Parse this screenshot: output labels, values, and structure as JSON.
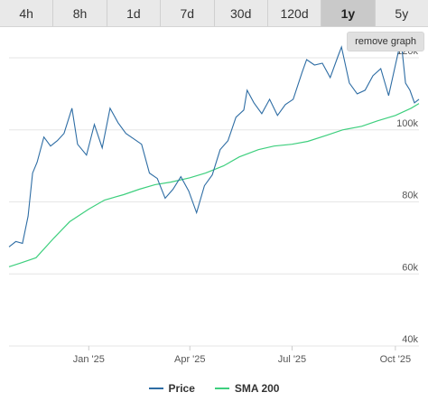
{
  "tabs": [
    {
      "label": "4h",
      "active": false
    },
    {
      "label": "8h",
      "active": false
    },
    {
      "label": "1d",
      "active": false
    },
    {
      "label": "7d",
      "active": false
    },
    {
      "label": "30d",
      "active": false
    },
    {
      "label": "120d",
      "active": false
    },
    {
      "label": "1y",
      "active": true
    },
    {
      "label": "5y",
      "active": false
    }
  ],
  "remove_graph_label": "remove graph",
  "colors": {
    "price": "#2e6da4",
    "sma": "#3ecf7e",
    "grid": "#e6e6e6",
    "axis_text": "#555555"
  },
  "chart_data": {
    "type": "line",
    "x_unit": "date",
    "ylim": [
      40000,
      120000
    ],
    "y_ticks": [
      {
        "value": 40000,
        "label": "40k"
      },
      {
        "value": 60000,
        "label": "60k"
      },
      {
        "value": 80000,
        "label": "80k"
      },
      {
        "value": 100000,
        "label": "100k"
      },
      {
        "value": 120000,
        "label": "120k"
      }
    ],
    "x_ticks": [
      {
        "date": "2025-01-01",
        "label": "Jan '25"
      },
      {
        "date": "2025-04-01",
        "label": "Apr '25"
      },
      {
        "date": "2025-07-01",
        "label": "Jul '25"
      },
      {
        "date": "2025-10-01",
        "label": "Oct '25"
      }
    ],
    "x_range": [
      "2024-10-22",
      "2025-10-22"
    ],
    "series": [
      {
        "name": "Price",
        "color": "#2e6da4",
        "points": [
          [
            "2024-10-22",
            67500
          ],
          [
            "2024-10-28",
            69000
          ],
          [
            "2024-11-03",
            68500
          ],
          [
            "2024-11-08",
            76000
          ],
          [
            "2024-11-12",
            88000
          ],
          [
            "2024-11-16",
            91000
          ],
          [
            "2024-11-22",
            98000
          ],
          [
            "2024-11-28",
            95500
          ],
          [
            "2024-12-04",
            97000
          ],
          [
            "2024-12-10",
            99000
          ],
          [
            "2024-12-17",
            106000
          ],
          [
            "2024-12-22",
            96000
          ],
          [
            "2024-12-30",
            93000
          ],
          [
            "2025-01-06",
            101500
          ],
          [
            "2025-01-13",
            95000
          ],
          [
            "2025-01-20",
            106000
          ],
          [
            "2025-01-27",
            102000
          ],
          [
            "2025-02-03",
            99000
          ],
          [
            "2025-02-10",
            97500
          ],
          [
            "2025-02-17",
            96000
          ],
          [
            "2025-02-24",
            88000
          ],
          [
            "2025-03-03",
            86500
          ],
          [
            "2025-03-10",
            81000
          ],
          [
            "2025-03-17",
            83500
          ],
          [
            "2025-03-24",
            87000
          ],
          [
            "2025-03-31",
            83000
          ],
          [
            "2025-04-07",
            77000
          ],
          [
            "2025-04-14",
            84500
          ],
          [
            "2025-04-21",
            87500
          ],
          [
            "2025-04-28",
            94500
          ],
          [
            "2025-05-05",
            97000
          ],
          [
            "2025-05-12",
            103500
          ],
          [
            "2025-05-19",
            105500
          ],
          [
            "2025-05-22",
            111000
          ],
          [
            "2025-05-28",
            107500
          ],
          [
            "2025-06-04",
            104500
          ],
          [
            "2025-06-11",
            108500
          ],
          [
            "2025-06-18",
            104000
          ],
          [
            "2025-06-25",
            107000
          ],
          [
            "2025-07-02",
            108500
          ],
          [
            "2025-07-10",
            116000
          ],
          [
            "2025-07-14",
            119500
          ],
          [
            "2025-07-21",
            118000
          ],
          [
            "2025-07-28",
            118500
          ],
          [
            "2025-08-04",
            114500
          ],
          [
            "2025-08-11",
            120500
          ],
          [
            "2025-08-14",
            123000
          ],
          [
            "2025-08-21",
            113000
          ],
          [
            "2025-08-28",
            110000
          ],
          [
            "2025-09-04",
            111000
          ],
          [
            "2025-09-11",
            115000
          ],
          [
            "2025-09-18",
            117000
          ],
          [
            "2025-09-25",
            109500
          ],
          [
            "2025-10-01",
            118000
          ],
          [
            "2025-10-06",
            125000
          ],
          [
            "2025-10-10",
            113000
          ],
          [
            "2025-10-14",
            111000
          ],
          [
            "2025-10-18",
            107500
          ],
          [
            "2025-10-22",
            108500
          ]
        ]
      },
      {
        "name": "SMA 200",
        "color": "#3ecf7e",
        "points": [
          [
            "2024-10-22",
            62000
          ],
          [
            "2024-11-01",
            63000
          ],
          [
            "2024-11-15",
            64500
          ],
          [
            "2024-12-01",
            70000
          ],
          [
            "2024-12-15",
            74500
          ],
          [
            "2025-01-01",
            78000
          ],
          [
            "2025-01-15",
            80500
          ],
          [
            "2025-02-01",
            82000
          ],
          [
            "2025-02-15",
            83500
          ],
          [
            "2025-03-01",
            84800
          ],
          [
            "2025-03-15",
            85500
          ],
          [
            "2025-04-01",
            86700
          ],
          [
            "2025-04-15",
            88000
          ],
          [
            "2025-05-01",
            90000
          ],
          [
            "2025-05-15",
            92500
          ],
          [
            "2025-06-01",
            94500
          ],
          [
            "2025-06-15",
            95500
          ],
          [
            "2025-07-01",
            96000
          ],
          [
            "2025-07-15",
            96800
          ],
          [
            "2025-08-01",
            98500
          ],
          [
            "2025-08-15",
            100000
          ],
          [
            "2025-09-01",
            101000
          ],
          [
            "2025-09-15",
            102500
          ],
          [
            "2025-10-01",
            104000
          ],
          [
            "2025-10-15",
            106000
          ],
          [
            "2025-10-22",
            107300
          ]
        ]
      }
    ]
  }
}
